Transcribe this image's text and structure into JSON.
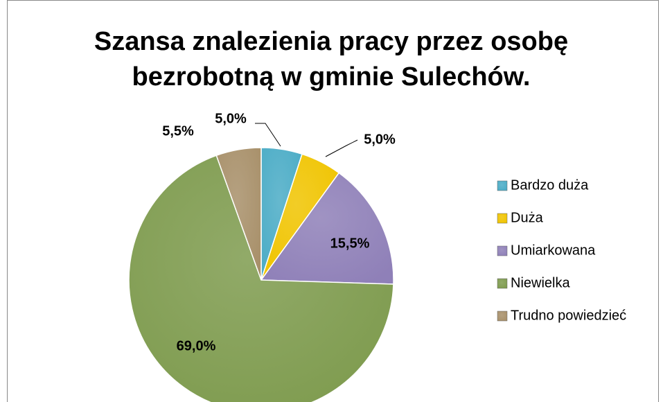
{
  "chart_data": {
    "type": "pie",
    "title": [
      "Szansa znalezienia pracy przez osobę",
      "bezrobotną w  gminie Sulechów."
    ],
    "categories": [
      "Bardzo duża",
      "Duża",
      "Umiarkowana",
      "Niewielka",
      "Trudno powiedzieć"
    ],
    "values": [
      5,
      5,
      15.5,
      69,
      5.5
    ],
    "value_labels": [
      "5,0%",
      "5,0%",
      "15,5%",
      "69,0%",
      "5,5%"
    ],
    "colors": [
      "#4bacc6",
      "#f0c400",
      "#8f80b8",
      "#7e9b4e",
      "#a8906a"
    ],
    "legend": "right"
  }
}
